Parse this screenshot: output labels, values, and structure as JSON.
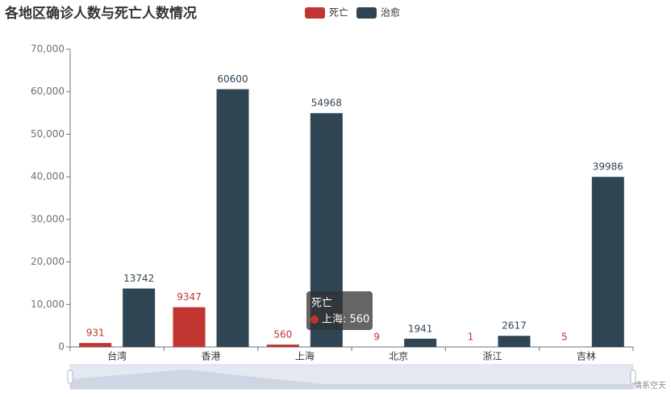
{
  "chart_data": {
    "type": "bar",
    "title": "各地区确诊人数与死亡人数情况",
    "categories": [
      "台湾",
      "香港",
      "上海",
      "北京",
      "浙江",
      "吉林"
    ],
    "series": [
      {
        "name": "死亡",
        "color": "#c23531",
        "values": [
          931,
          9347,
          560,
          9,
          1,
          5
        ]
      },
      {
        "name": "治愈",
        "color": "#2f4554",
        "values": [
          13742,
          60600,
          54968,
          1941,
          2617,
          39986
        ]
      }
    ],
    "ylim": [
      0,
      70000
    ],
    "yticks": [
      0,
      {
        "value": 10000,
        "label": "10,000"
      },
      {
        "value": 20000,
        "label": "20,000"
      },
      {
        "value": 30000,
        "label": "30,000"
      },
      {
        "value": 40000,
        "label": "40,000"
      },
      {
        "value": 50000,
        "label": "50,000"
      },
      {
        "value": 60000,
        "label": "60,000"
      },
      {
        "value": 70000,
        "label": "70,000"
      }
    ],
    "legend": "top",
    "tooltip": {
      "series": "死亡",
      "text": "上海: 560"
    },
    "watermark": "CSDN @情系空天"
  }
}
